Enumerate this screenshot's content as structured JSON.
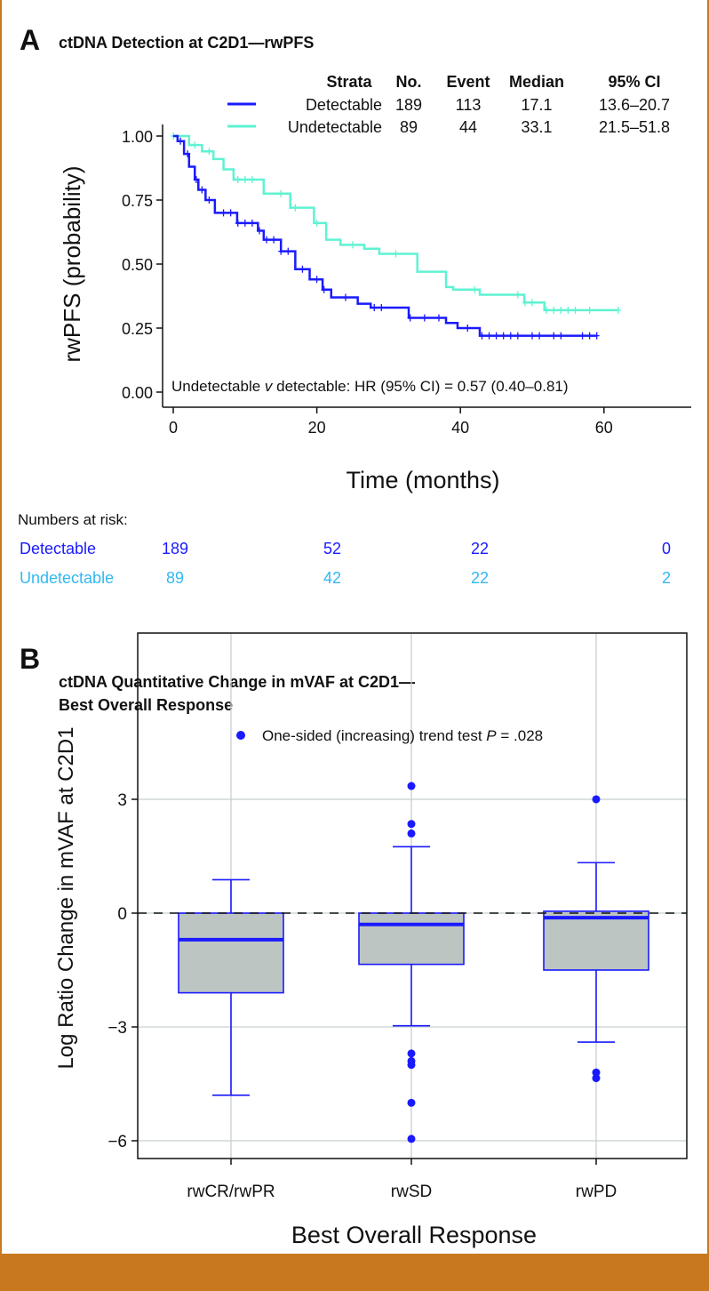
{
  "colors": {
    "detectable": "#1a1aff",
    "undetectable": "#5ff2d2",
    "risk_undetectable": "#33b8f0",
    "frame": "#c8791e",
    "box_fill": "#bdc5c3",
    "grid": "#c8cfcf"
  },
  "chart_data": [
    {
      "type": "line",
      "panel_letter": "A",
      "title": "ctDNA Detection at C2D1—rwPFS",
      "xlabel": "Time (months)",
      "ylabel": "rwPFS (probability)",
      "xlim": [
        -2,
        62
      ],
      "ylim": [
        -0.03,
        1.05
      ],
      "xticks": [
        "0",
        "20",
        "40",
        "60"
      ],
      "xtick_values": [
        0,
        20,
        40,
        60
      ],
      "yticks": [
        "0.00",
        "0.25",
        "0.50",
        "0.75",
        "1.00"
      ],
      "ytick_values": [
        0,
        0.25,
        0.5,
        0.75,
        1
      ],
      "legend_headers": [
        "Strata",
        "No.",
        "Event",
        "Median",
        "95% CI"
      ],
      "series": [
        {
          "name": "Detectable",
          "no": "189",
          "event": "113",
          "median": "17.1",
          "ci": "13.6–20.7",
          "steps": [
            [
              0,
              1
            ],
            [
              0.6,
              0.98
            ],
            [
              1.5,
              0.93
            ],
            [
              2.2,
              0.88
            ],
            [
              3,
              0.83
            ],
            [
              3.5,
              0.79
            ],
            [
              4.5,
              0.75
            ],
            [
              5.8,
              0.7
            ],
            [
              8.9,
              0.66
            ],
            [
              11.8,
              0.63
            ],
            [
              12.6,
              0.595
            ],
            [
              15,
              0.55
            ],
            [
              17,
              0.48
            ],
            [
              19,
              0.44
            ],
            [
              20.8,
              0.4
            ],
            [
              22,
              0.37
            ],
            [
              25.7,
              0.345
            ],
            [
              27.5,
              0.33
            ],
            [
              32.8,
              0.29
            ],
            [
              38,
              0.27
            ],
            [
              39.6,
              0.25
            ],
            [
              42.7,
              0.22
            ],
            [
              59,
              0.22
            ]
          ],
          "censored": [
            1,
            2,
            3.2,
            4,
            5,
            7,
            8,
            9,
            10,
            11,
            12,
            13,
            14,
            15,
            16,
            18,
            20,
            21,
            24,
            28,
            29,
            33,
            35,
            37,
            41,
            43,
            44,
            45,
            46,
            47,
            48,
            50,
            51,
            53,
            54,
            57,
            58,
            59
          ]
        },
        {
          "name": "Undetectable",
          "no": "89",
          "event": "44",
          "median": "33.1",
          "ci": "21.5–51.8",
          "steps": [
            [
              0,
              1
            ],
            [
              2.2,
              0.965
            ],
            [
              4,
              0.94
            ],
            [
              5.6,
              0.91
            ],
            [
              7,
              0.87
            ],
            [
              8.4,
              0.83
            ],
            [
              12.6,
              0.775
            ],
            [
              16.3,
              0.72
            ],
            [
              19.6,
              0.66
            ],
            [
              21.3,
              0.595
            ],
            [
              23.3,
              0.575
            ],
            [
              26.6,
              0.56
            ],
            [
              28.7,
              0.54
            ],
            [
              34,
              0.47
            ],
            [
              38,
              0.41
            ],
            [
              39,
              0.4
            ],
            [
              42.7,
              0.38
            ],
            [
              48.9,
              0.35
            ],
            [
              51.7,
              0.32
            ],
            [
              62,
              0.32
            ]
          ],
          "censored": [
            0,
            3,
            5,
            9,
            10,
            11,
            15,
            17,
            20,
            25,
            31,
            42,
            48,
            49,
            50,
            52,
            53,
            54,
            55,
            56,
            58,
            62
          ]
        }
      ],
      "annotation": {
        "pre": "Undetectable ",
        "italic": "v",
        "post": " detectable: HR (95% CI) = 0.57 (0.40–0.81)"
      },
      "risk_table": {
        "title": "Numbers at risk:",
        "rows": [
          {
            "label": "Detectable",
            "values": [
              "189",
              "52",
              "22",
              "0"
            ]
          },
          {
            "label": "Undetectable",
            "values": [
              "89",
              "42",
              "22",
              "2"
            ]
          }
        ]
      }
    },
    {
      "type": "box",
      "panel_letter": "B",
      "title": [
        "ctDNA Quantitative Change in mVAF at C2D1—",
        "Best Overall Response"
      ],
      "xlabel": "Best Overall Response",
      "ylabel": "Log Ratio Change in mVAF at C2D1",
      "ylim": [
        -6.5,
        5.0
      ],
      "yticks": [
        "−6",
        "−3",
        "0",
        "3"
      ],
      "ytick_values": [
        -6,
        -3,
        0,
        3
      ],
      "categories": [
        "rwCR/rwPR",
        "rwSD",
        "rwPD"
      ],
      "boxes": [
        {
          "whislo": -4.8,
          "q1": -2.1,
          "median": -0.7,
          "q3": 0.0,
          "whishi": 0.88,
          "outliers": []
        },
        {
          "whislo": -2.97,
          "q1": -1.35,
          "median": -0.3,
          "q3": 0.0,
          "whishi": 1.75,
          "outliers": [
            3.35,
            2.35,
            2.1,
            -3.7,
            -3.9,
            -4.0,
            -5.0,
            -5.95
          ]
        },
        {
          "whislo": -3.4,
          "q1": -1.5,
          "median": -0.12,
          "q3": 0.05,
          "whishi": 1.33,
          "outliers": [
            3.0,
            -4.2,
            -4.35
          ]
        }
      ],
      "reference_line": 0,
      "legend": {
        "pre": "One-sided (increasing) trend test ",
        "italic": "P",
        "post": " = .028"
      }
    }
  ]
}
